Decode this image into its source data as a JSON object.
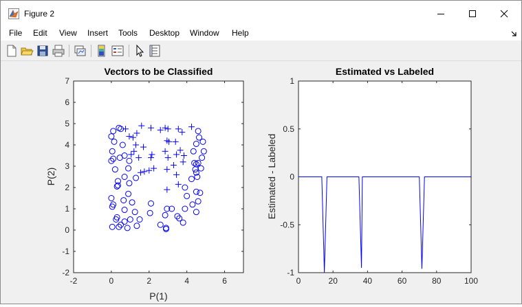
{
  "window": {
    "title": "Figure 2",
    "title_icon": "matlab-figure-icon"
  },
  "menu": [
    "File",
    "Edit",
    "View",
    "Insert",
    "Tools",
    "Desktop",
    "Window",
    "Help"
  ],
  "toolbar_icons": [
    "new-figure-icon",
    "open-file-icon",
    "save-icon",
    "print-icon",
    "link-plot-icon",
    "insert-colorbar-icon",
    "insert-legend-icon",
    "edit-plot-arrow-icon",
    "property-inspector-icon"
  ],
  "chart_data": [
    {
      "type": "scatter",
      "title": "Vectors to be Classified",
      "xlabel": "P(1)",
      "ylabel": "P(2)",
      "xlim": [
        -2,
        7
      ],
      "ylim": [
        -2,
        7
      ],
      "xticks": [
        "-2",
        "0",
        "2",
        "4",
        "6"
      ],
      "yticks": [
        "-2",
        "-1",
        "0",
        "1",
        "2",
        "3",
        "4",
        "5",
        "6",
        "7"
      ],
      "color": "#0000ff",
      "series": [
        {
          "marker": "o",
          "points": [
            [
              0.1,
              4.65
            ],
            [
              0.4,
              4.8
            ],
            [
              0.5,
              4.75
            ],
            [
              0.0,
              4.4
            ],
            [
              0.15,
              4.15
            ],
            [
              0.6,
              4.0
            ],
            [
              0.05,
              3.7
            ],
            [
              0.1,
              3.35
            ],
            [
              0.0,
              3.25
            ],
            [
              0.45,
              3.4
            ],
            [
              0.7,
              3.5
            ],
            [
              0.95,
              3.25
            ],
            [
              0.2,
              2.85
            ],
            [
              0.9,
              2.9
            ],
            [
              1.3,
              2.45
            ],
            [
              0.7,
              2.5
            ],
            [
              0.35,
              2.3
            ],
            [
              0.3,
              2.05
            ],
            [
              0.35,
              2.1
            ],
            [
              0.95,
              2.2
            ],
            [
              0.0,
              1.5
            ],
            [
              0.1,
              1.2
            ],
            [
              0.05,
              1.1
            ],
            [
              0.9,
              1.7
            ],
            [
              0.65,
              1.4
            ],
            [
              1.1,
              1.3
            ],
            [
              0.7,
              0.95
            ],
            [
              1.25,
              0.85
            ],
            [
              0.3,
              0.6
            ],
            [
              0.25,
              0.5
            ],
            [
              0.7,
              0.4
            ],
            [
              1.0,
              0.5
            ],
            [
              0.5,
              0.25
            ],
            [
              0.05,
              0.15
            ],
            [
              1.5,
              0.5
            ],
            [
              0.4,
              0.15
            ],
            [
              0.85,
              0.1
            ],
            [
              1.35,
              0.2
            ],
            [
              2.05,
              0.8
            ],
            [
              2.1,
              1.25
            ],
            [
              2.6,
              0.25
            ],
            [
              2.9,
              0.05
            ],
            [
              2.9,
              0.1
            ],
            [
              2.85,
              0.7
            ],
            [
              2.95,
              1.0
            ],
            [
              3.2,
              1.0
            ],
            [
              3.5,
              0.65
            ],
            [
              3.8,
              0.35
            ],
            [
              3.6,
              0.55
            ],
            [
              3.9,
              1.0
            ],
            [
              4.5,
              0.85
            ],
            [
              4.3,
              1.2
            ],
            [
              4.0,
              1.6
            ],
            [
              4.6,
              1.35
            ],
            [
              4.7,
              1.75
            ],
            [
              4.5,
              1.8
            ],
            [
              3.9,
              2.0
            ],
            [
              4.25,
              2.4
            ],
            [
              4.55,
              2.5
            ],
            [
              4.75,
              2.9
            ],
            [
              4.5,
              3.1
            ],
            [
              4.6,
              3.15
            ],
            [
              4.4,
              3.15
            ],
            [
              4.8,
              3.4
            ],
            [
              4.35,
              3.7
            ],
            [
              4.9,
              3.7
            ],
            [
              4.5,
              4.05
            ],
            [
              4.65,
              4.35
            ],
            [
              4.85,
              4.15
            ],
            [
              4.6,
              4.65
            ],
            [
              4.5,
              2.7
            ],
            [
              4.45,
              2.85
            ]
          ]
        },
        {
          "marker": "+",
          "points": [
            [
              0.75,
              4.75
            ],
            [
              1.6,
              4.9
            ],
            [
              2.1,
              4.8
            ],
            [
              2.6,
              4.7
            ],
            [
              2.85,
              4.8
            ],
            [
              3.0,
              4.75
            ],
            [
              3.55,
              4.75
            ],
            [
              3.75,
              4.6
            ],
            [
              4.25,
              4.85
            ],
            [
              1.35,
              4.55
            ],
            [
              0.95,
              4.4
            ],
            [
              1.15,
              4.35
            ],
            [
              2.95,
              4.2
            ],
            [
              3.05,
              4.15
            ],
            [
              3.4,
              4.15
            ],
            [
              1.3,
              4.0
            ],
            [
              1.2,
              3.7
            ],
            [
              1.05,
              3.55
            ],
            [
              1.7,
              3.9
            ],
            [
              2.1,
              3.4
            ],
            [
              2.15,
              3.55
            ],
            [
              2.85,
              3.7
            ],
            [
              3.0,
              3.4
            ],
            [
              3.45,
              3.55
            ],
            [
              3.65,
              3.75
            ],
            [
              3.85,
              3.5
            ],
            [
              3.8,
              3.2
            ],
            [
              1.55,
              2.7
            ],
            [
              1.75,
              2.75
            ],
            [
              2.0,
              2.8
            ],
            [
              2.25,
              2.9
            ],
            [
              2.95,
              2.85
            ],
            [
              3.3,
              3.05
            ],
            [
              3.45,
              2.6
            ],
            [
              3.55,
              2.15
            ],
            [
              2.95,
              1.9
            ],
            [
              1.45,
              3.4
            ]
          ]
        }
      ]
    },
    {
      "type": "line",
      "title": "Estimated vs Labeled",
      "xlabel": "",
      "ylabel": "Estimated - Labeled",
      "xlim": [
        0,
        100
      ],
      "ylim": [
        -1,
        1
      ],
      "xticks": [
        "0",
        "20",
        "40",
        "60",
        "80",
        "100"
      ],
      "yticks": [
        "-1",
        "-0.5",
        "0",
        "0.5",
        "1"
      ],
      "color": "#0000ff",
      "series": [
        {
          "x": [
            0,
            13.5,
            15,
            16.5,
            35,
            36.5,
            37,
            70,
            71.5,
            73,
            100
          ],
          "y": [
            0,
            0,
            -1,
            0,
            0,
            -0.95,
            0,
            0,
            -0.96,
            0,
            0
          ]
        }
      ]
    }
  ]
}
